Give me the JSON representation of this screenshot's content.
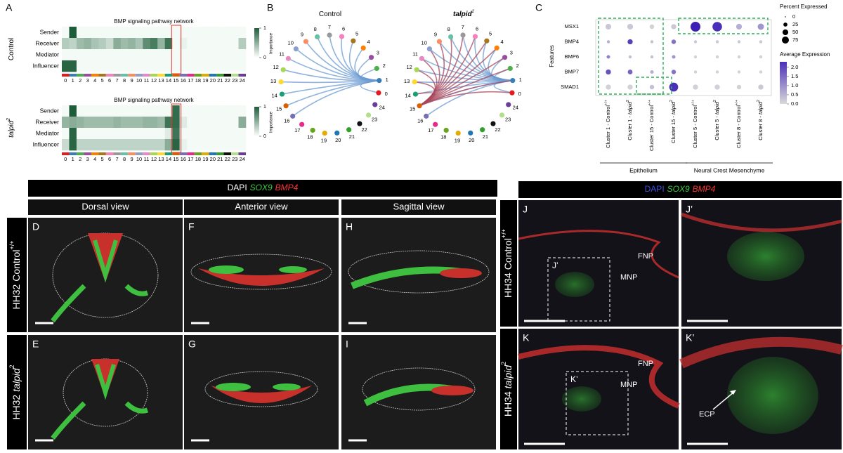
{
  "panel_labels": [
    "A",
    "B",
    "C"
  ],
  "panel_a": {
    "roles": [
      "Sender",
      "Receiver",
      "Mediator",
      "Influencer"
    ],
    "clusters": [
      "0",
      "1",
      "2",
      "3",
      "4",
      "5",
      "6",
      "7",
      "8",
      "9",
      "10",
      "11",
      "12",
      "13",
      "14",
      "15",
      "16",
      "17",
      "18",
      "19",
      "20",
      "21",
      "22",
      "23",
      "24"
    ],
    "heatmaps": [
      {
        "title": "BMP signaling pathway network",
        "condition": "Control",
        "legend_title": "Importance",
        "legend_ticks": [
          1,
          0
        ],
        "values": [
          [
            0,
            1,
            0,
            0,
            0,
            0,
            0,
            0,
            0,
            0,
            0,
            0,
            0,
            0,
            0,
            0,
            0,
            0,
            0,
            0,
            0,
            0,
            0,
            0,
            0
          ],
          [
            0.3,
            0.25,
            0.4,
            0.45,
            0.35,
            0.3,
            0.2,
            0.5,
            0.4,
            0.45,
            0.35,
            0.7,
            0.8,
            0.45,
            0.85,
            0,
            0.05,
            0,
            0,
            0,
            0,
            0,
            0,
            0,
            0.3
          ],
          [
            0,
            0,
            0,
            0,
            0,
            0,
            0,
            0,
            0,
            0,
            0,
            0,
            0,
            0,
            0,
            0,
            0,
            0,
            0,
            0,
            0,
            0,
            0,
            0,
            0
          ],
          [
            0.95,
            0.95,
            0,
            0,
            0,
            0,
            0,
            0,
            0,
            0,
            0,
            0,
            0,
            0,
            0,
            0,
            0,
            0,
            0,
            0,
            0,
            0,
            0,
            0,
            0
          ]
        ]
      },
      {
        "title": "BMP signaling pathway network",
        "condition": "talpid",
        "sup": "2",
        "legend_title": "Importance",
        "legend_ticks": [
          1,
          0
        ],
        "values": [
          [
            0,
            1,
            0,
            0,
            0,
            0,
            0,
            0,
            0,
            0,
            0,
            0,
            0,
            0,
            0,
            0.9,
            0,
            0,
            0,
            0,
            0,
            0,
            0,
            0,
            0
          ],
          [
            0.45,
            0.5,
            0.45,
            0.4,
            0.4,
            0.4,
            0.4,
            0.45,
            0.4,
            0.4,
            0.4,
            0.45,
            0.45,
            0.4,
            0.85,
            0.9,
            0.1,
            0,
            0,
            0,
            0,
            0,
            0,
            0,
            0.5
          ],
          [
            0,
            0.95,
            0,
            0,
            0,
            0,
            0,
            0,
            0,
            0,
            0,
            0,
            0,
            0,
            0.1,
            0.85,
            0,
            0,
            0,
            0,
            0,
            0,
            0,
            0,
            0
          ],
          [
            0.2,
            0.95,
            0.25,
            0.25,
            0.25,
            0.25,
            0.25,
            0.25,
            0.25,
            0.25,
            0.25,
            0.25,
            0.25,
            0.25,
            0.5,
            0.95,
            0.05,
            0,
            0,
            0,
            0,
            0,
            0,
            0,
            0
          ]
        ]
      }
    ]
  },
  "panel_b": {
    "networks": [
      {
        "title": "Control"
      },
      {
        "title": "talpid",
        "sup": "2"
      }
    ],
    "nodes": [
      "0",
      "1",
      "2",
      "3",
      "4",
      "5",
      "6",
      "7",
      "8",
      "9",
      "10",
      "11",
      "12",
      "13",
      "14",
      "15",
      "16",
      "17",
      "18",
      "19",
      "20",
      "21",
      "22",
      "23",
      "24"
    ]
  },
  "panel_c": {
    "y_label": "Features",
    "features": [
      "MSX1",
      "BMP4",
      "BMP6",
      "BMP7",
      "SMAD1"
    ],
    "clusters": [
      {
        "prefix": "Cluster 1 - ",
        "condition": "Control",
        "sup": "+/+"
      },
      {
        "prefix": "Cluster 1 - ",
        "condition": "talpid",
        "sup": "2"
      },
      {
        "prefix": "Cluster 15 - ",
        "condition": "Control",
        "sup": "+/+"
      },
      {
        "prefix": "Cluster 15 - ",
        "condition": "talpid",
        "sup": "2"
      },
      {
        "prefix": "Cluster 5 - ",
        "condition": "Control",
        "sup": "+/+"
      },
      {
        "prefix": "Cluster 5 - ",
        "condition": "talpid",
        "sup": "2"
      },
      {
        "prefix": "Cluster 8 - ",
        "condition": "Control",
        "sup": "+/+"
      },
      {
        "prefix": "Cluster 8 - ",
        "condition": "talpid",
        "sup": "2"
      }
    ],
    "groups": [
      "Epithelium",
      "Neural Crest Mesenchyme"
    ],
    "pct_title": "Percent Expressed",
    "pct_ticks": [
      0,
      25,
      50,
      75
    ],
    "avg_title": "Average Expression",
    "avg_ticks": [
      {
        "value": 2,
        "label": "2.0"
      },
      {
        "value": 1.5,
        "label": "1.5"
      },
      {
        "value": 1,
        "label": "1.0"
      },
      {
        "value": 0.5,
        "label": "0.5"
      },
      {
        "value": 0,
        "label": "0.0"
      }
    ],
    "pct": [
      [
        20,
        20,
        10,
        15,
        75,
        70,
        20,
        25
      ],
      [
        3,
        15,
        3,
        10,
        3,
        3,
        3,
        3
      ],
      [
        5,
        3,
        3,
        5,
        3,
        3,
        3,
        3
      ],
      [
        15,
        12,
        5,
        10,
        3,
        3,
        3,
        3
      ],
      [
        15,
        15,
        10,
        60,
        15,
        15,
        10,
        15
      ]
    ],
    "avg": [
      [
        0.2,
        0.2,
        0.1,
        0.2,
        2.2,
        2.0,
        0.5,
        0.8
      ],
      [
        0.5,
        1.8,
        0.3,
        1.2,
        0.2,
        0.2,
        0.2,
        0.2
      ],
      [
        1.0,
        0.3,
        0.3,
        0.8,
        0.1,
        0.1,
        0.1,
        0.1
      ],
      [
        1.6,
        1.4,
        0.5,
        1.2,
        0.1,
        0.1,
        0.1,
        0.1
      ],
      [
        0.1,
        0.1,
        0.3,
        2.0,
        0.1,
        0.1,
        0.1,
        0.2
      ]
    ]
  },
  "bottom_left": {
    "stain": [
      "DAPI",
      "SOX9",
      "BMP4"
    ],
    "views": [
      "Dorsal view",
      "Anterior view",
      "Sagittal view"
    ],
    "rows": [
      {
        "stage": "HH32",
        "condition": "Control",
        "sup": "+/+"
      },
      {
        "stage": "HH32",
        "condition": "talpid",
        "sup": "2"
      }
    ],
    "panels": [
      [
        "D",
        "F",
        "H"
      ],
      [
        "E",
        "G",
        "I"
      ]
    ]
  },
  "bottom_right": {
    "stain": [
      "DAPI",
      "SOX9",
      "BMP4"
    ],
    "rows": [
      {
        "stage": "HH34",
        "condition": "Control",
        "sup": "+/+"
      },
      {
        "stage": "HH34",
        "condition": "talpid",
        "sup": "2"
      }
    ],
    "panels": [
      [
        "J",
        "J’"
      ],
      [
        "K",
        "K’"
      ]
    ],
    "annotations": [
      [
        "FNP",
        "MNP"
      ],
      [
        "FNP",
        "MNP"
      ]
    ],
    "arrow_label": "ECP"
  }
}
